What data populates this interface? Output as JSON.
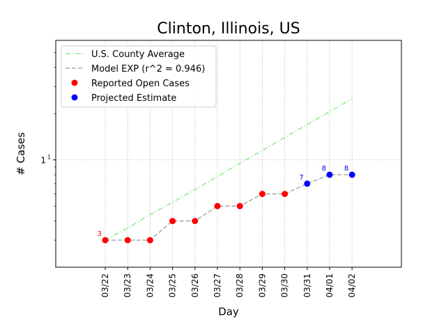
{
  "chart_data": {
    "type": "line",
    "title": "Clinton, Illinois, US",
    "xlabel": "Day",
    "ylabel": "# Cases",
    "yscale": "log",
    "ylim": [
      2.0,
      60
    ],
    "y_ticks": [
      {
        "value": 10,
        "label": "10",
        "exp": "1"
      }
    ],
    "grid": true,
    "legend_position": "top-left",
    "categories": [
      "03/22",
      "03/23",
      "03/24",
      "03/25",
      "03/26",
      "03/27",
      "03/28",
      "03/29",
      "03/30",
      "03/31",
      "04/01",
      "04/02"
    ],
    "series": [
      {
        "name": "U.S. County Average",
        "style": "dashdot",
        "color": "#90ee90",
        "values": [
          3.0,
          3.6,
          4.4,
          5.3,
          6.4,
          7.8,
          9.5,
          11.5,
          14.0,
          17.0,
          20.6,
          25.0
        ]
      },
      {
        "name": "Model EXP (r^2 = 0.946)",
        "style": "dashed",
        "color": "#aaaaaa",
        "values": [
          3,
          3,
          3,
          4,
          4,
          5,
          5,
          6,
          6,
          7,
          8,
          8
        ]
      },
      {
        "name": "Reported Open Cases",
        "style": "marker",
        "color": "#ff0000",
        "values": [
          3,
          3,
          3,
          4,
          4,
          5,
          5,
          6,
          6,
          null,
          null,
          null
        ],
        "labels": [
          {
            "index": 0,
            "text": "3"
          }
        ]
      },
      {
        "name": "Projected Estimate",
        "style": "marker",
        "color": "#0000ff",
        "values": [
          null,
          null,
          null,
          null,
          null,
          null,
          null,
          null,
          null,
          7,
          8,
          8
        ],
        "labels": [
          {
            "index": 9,
            "text": "7"
          },
          {
            "index": 10,
            "text": "8"
          },
          {
            "index": 11,
            "text": "8"
          }
        ]
      }
    ]
  }
}
